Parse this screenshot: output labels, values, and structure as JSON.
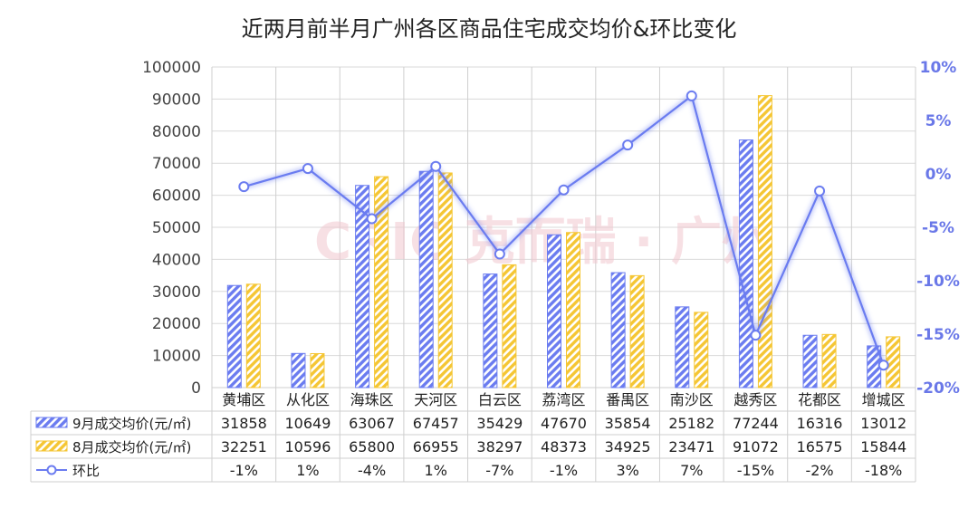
{
  "chart_data": {
    "type": "bar",
    "title": "近两月前半月广州各区商品住宅成交均价&环比变化",
    "categories": [
      "黄埔区",
      "从化区",
      "海珠区",
      "天河区",
      "白云区",
      "荔湾区",
      "番禺区",
      "南沙区",
      "越秀区",
      "花都区",
      "增城区"
    ],
    "series": [
      {
        "name": "9月成交均价(元/㎡)",
        "kind": "bar",
        "axis": "left",
        "color": "#6b7cf0",
        "pattern": "hatch",
        "values": [
          31858,
          10649,
          63067,
          67457,
          35429,
          47670,
          35854,
          25182,
          77244,
          16316,
          13012
        ]
      },
      {
        "name": "8月成交均价(元/㎡)",
        "kind": "bar",
        "axis": "left",
        "color": "#f5c634",
        "pattern": "hatch",
        "values": [
          32251,
          10596,
          65800,
          66955,
          38297,
          48373,
          34925,
          23471,
          91072,
          16575,
          15844
        ]
      },
      {
        "name": "环比",
        "kind": "line",
        "axis": "right",
        "color": "#6b7cf0",
        "values": [
          -1.2,
          0.5,
          -4.2,
          0.7,
          -7.5,
          -1.5,
          2.7,
          7.3,
          -15.1,
          -1.6,
          -17.9
        ],
        "labels": [
          "-1%",
          "1%",
          "-4%",
          "1%",
          "-7%",
          "-1%",
          "3%",
          "7%",
          "-15%",
          "-2%",
          "-18%"
        ]
      }
    ],
    "y_left": {
      "min": 0,
      "max": 100000,
      "step": 10000,
      "ticks": [
        "0",
        "10000",
        "20000",
        "30000",
        "40000",
        "50000",
        "60000",
        "70000",
        "80000",
        "90000",
        "100000"
      ]
    },
    "y_right": {
      "min": -20,
      "max": 10,
      "step": 5,
      "ticks": [
        "-20%",
        "-15%",
        "-10%",
        "-5%",
        "0%",
        "5%",
        "10%"
      ]
    },
    "grid": true,
    "legend": "data-table"
  },
  "watermark": "CRIC 克而瑞 · 广州"
}
